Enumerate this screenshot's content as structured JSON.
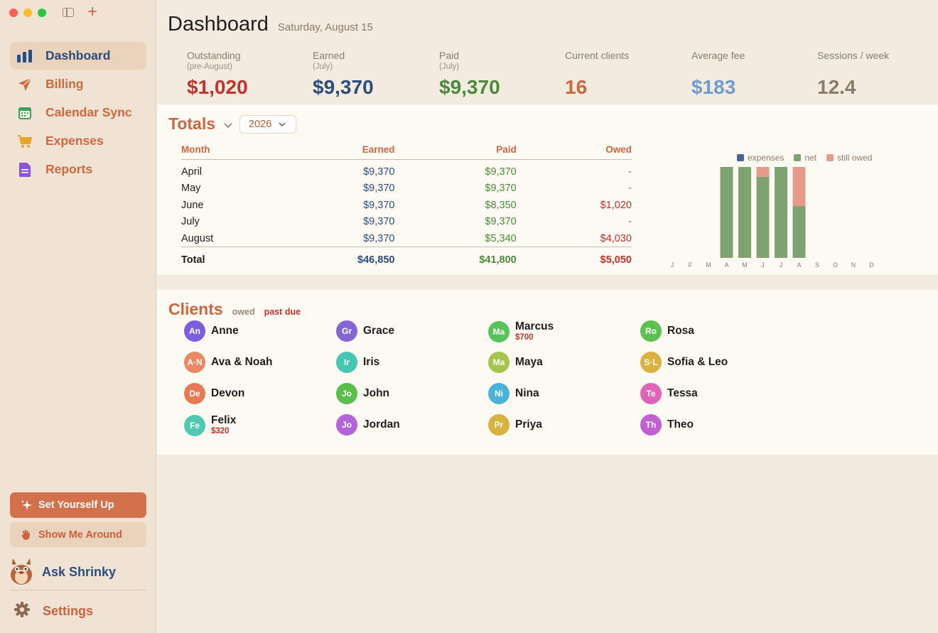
{
  "sidebar": {
    "nav": [
      {
        "label": "Dashboard",
        "icon": "bar-chart-icon",
        "active": true
      },
      {
        "label": "Billing",
        "icon": "paper-plane-icon"
      },
      {
        "label": "Calendar Sync",
        "icon": "calendar-icon"
      },
      {
        "label": "Expenses",
        "icon": "cart-icon"
      },
      {
        "label": "Reports",
        "icon": "document-icon"
      }
    ],
    "setup_label": "Set Yourself Up",
    "around_label": "Show Me Around",
    "shrinky_label": "Ask Shrinky",
    "settings_label": "Settings"
  },
  "header": {
    "title": "Dashboard",
    "date": "Saturday, August 15"
  },
  "stats": [
    {
      "label": "Outstanding",
      "sub": "(pre-August)",
      "value": "$1,020",
      "color": "#c1332a"
    },
    {
      "label": "Earned",
      "sub": "(July)",
      "value": "$9,370",
      "color": "#2a4c7e"
    },
    {
      "label": "Paid",
      "sub": "(July)",
      "value": "$9,370",
      "color": "#4b8a3c"
    },
    {
      "label": "Current clients",
      "sub": "",
      "value": "16",
      "color": "#cc673e"
    },
    {
      "label": "Average fee",
      "sub": "",
      "value": "$183",
      "color": "#6f9bd4"
    },
    {
      "label": "Sessions / week",
      "sub": "",
      "value": "12.4",
      "color": "#8a7b6c"
    }
  ],
  "totals": {
    "title": "Totals",
    "year": "2026",
    "columns": [
      "Month",
      "Earned",
      "Paid",
      "Owed"
    ],
    "rows": [
      {
        "month": "April",
        "earned": "$9,370",
        "paid": "$9,370",
        "owed": "-"
      },
      {
        "month": "May",
        "earned": "$9,370",
        "paid": "$9,370",
        "owed": "-"
      },
      {
        "month": "June",
        "earned": "$9,370",
        "paid": "$8,350",
        "owed": "$1,020"
      },
      {
        "month": "July",
        "earned": "$9,370",
        "paid": "$9,370",
        "owed": "-"
      },
      {
        "month": "August",
        "earned": "$9,370",
        "paid": "$5,340",
        "owed": "$4,030"
      }
    ],
    "total": {
      "label": "Total",
      "earned": "$46,850",
      "paid": "$41,800",
      "owed": "$5,050"
    }
  },
  "chart_data": {
    "type": "bar",
    "stacked": true,
    "categories": [
      "J",
      "F",
      "M",
      "A",
      "M",
      "J",
      "J",
      "A",
      "S",
      "O",
      "N",
      "D"
    ],
    "series": [
      {
        "name": "expenses",
        "color": "#4a6590",
        "values": [
          0,
          0,
          0,
          0,
          0,
          0,
          0,
          0,
          0,
          0,
          0,
          0
        ]
      },
      {
        "name": "net",
        "color": "#7fa273",
        "values": [
          0,
          0,
          0,
          9370,
          9370,
          8350,
          9370,
          5340,
          0,
          0,
          0,
          0
        ]
      },
      {
        "name": "still owed",
        "color": "#e69a8c",
        "values": [
          0,
          0,
          0,
          0,
          0,
          1020,
          0,
          4030,
          0,
          0,
          0,
          0
        ]
      }
    ],
    "ylim": [
      0,
      9370
    ],
    "legend": "top-right",
    "grid": false
  },
  "clients": {
    "title": "Clients",
    "owed_tag": "owed",
    "pastdue_tag": "past due",
    "list": [
      {
        "name": "Anne",
        "initials": "An",
        "color": "#7b5fe0",
        "owed": ""
      },
      {
        "name": "Ava & Noah",
        "initials": "A·N",
        "color": "#e98862",
        "owed": ""
      },
      {
        "name": "Devon",
        "initials": "De",
        "color": "#e57a55",
        "owed": ""
      },
      {
        "name": "Felix",
        "initials": "Fe",
        "color": "#4fc9b3",
        "owed": "$320"
      },
      {
        "name": "Grace",
        "initials": "Gr",
        "color": "#8565d6",
        "owed": ""
      },
      {
        "name": "Iris",
        "initials": "Ir",
        "color": "#45c7b2",
        "owed": ""
      },
      {
        "name": "John",
        "initials": "Jo",
        "color": "#5cbe4a",
        "owed": ""
      },
      {
        "name": "Jordan",
        "initials": "Jo",
        "color": "#b364d9",
        "owed": ""
      },
      {
        "name": "Marcus",
        "initials": "Ma",
        "color": "#56c45a",
        "owed": "$700"
      },
      {
        "name": "Maya",
        "initials": "Ma",
        "color": "#a5c44a",
        "owed": ""
      },
      {
        "name": "Nina",
        "initials": "Ni",
        "color": "#48b3d6",
        "owed": ""
      },
      {
        "name": "Priya",
        "initials": "Pr",
        "color": "#d8b23e",
        "owed": ""
      },
      {
        "name": "Rosa",
        "initials": "Ro",
        "color": "#5ac04e",
        "owed": ""
      },
      {
        "name": "Sofia & Leo",
        "initials": "S·L",
        "color": "#dbb142",
        "owed": ""
      },
      {
        "name": "Tessa",
        "initials": "Te",
        "color": "#e063b8",
        "owed": ""
      },
      {
        "name": "Theo",
        "initials": "Th",
        "color": "#c15fd3",
        "owed": ""
      }
    ]
  }
}
